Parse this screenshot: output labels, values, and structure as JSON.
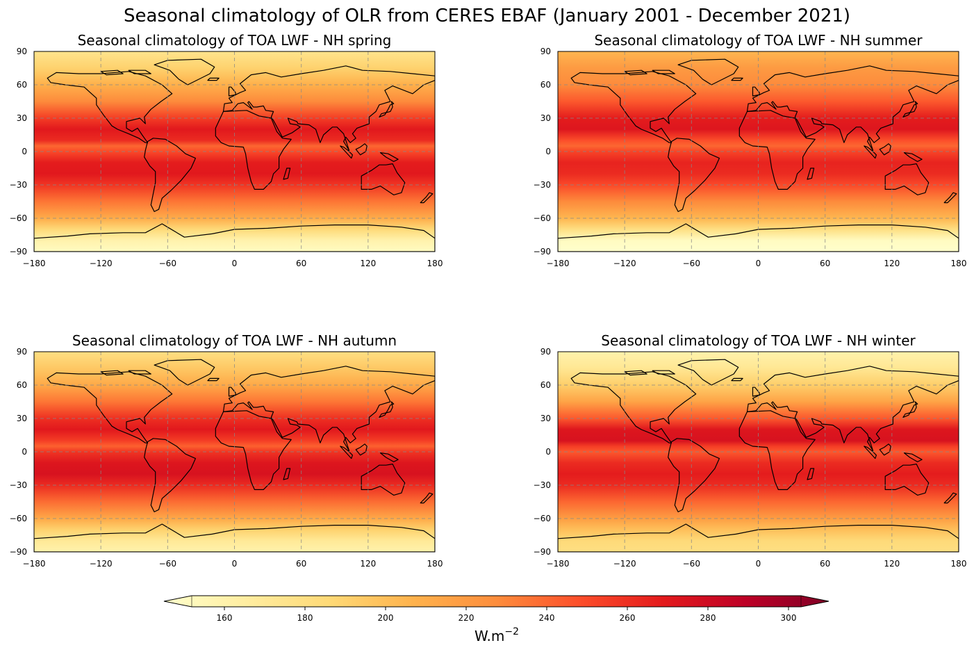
{
  "figure_title": "Seasonal climatology of OLR from CERES EBAF (January 2001 - December 2021)",
  "chart_data": [
    {
      "type": "heatmap",
      "title": "Seasonal climatology of TOA LWF - NH spring",
      "x_ticks": [
        "−180",
        "−120",
        "−60",
        "0",
        "60",
        "120",
        "180"
      ],
      "y_ticks": [
        "90",
        "60",
        "30",
        "0",
        "−30",
        "−60",
        "−90"
      ],
      "xlim": [
        -180,
        180
      ],
      "ylim": [
        -90,
        90
      ],
      "zonal_profile": [
        {
          "lat": 90,
          "value": 175
        },
        {
          "lat": 75,
          "value": 190
        },
        {
          "lat": 60,
          "value": 208
        },
        {
          "lat": 45,
          "value": 228
        },
        {
          "lat": 30,
          "value": 255
        },
        {
          "lat": 20,
          "value": 270
        },
        {
          "lat": 10,
          "value": 262
        },
        {
          "lat": 5,
          "value": 240
        },
        {
          "lat": 0,
          "value": 250
        },
        {
          "lat": -10,
          "value": 268
        },
        {
          "lat": -20,
          "value": 270
        },
        {
          "lat": -30,
          "value": 258
        },
        {
          "lat": -45,
          "value": 235
        },
        {
          "lat": -60,
          "value": 210
        },
        {
          "lat": -70,
          "value": 185
        },
        {
          "lat": -80,
          "value": 160
        },
        {
          "lat": -90,
          "value": 150
        }
      ]
    },
    {
      "type": "heatmap",
      "title": "Seasonal climatology of TOA LWF - NH summer",
      "x_ticks": [
        "−180",
        "−120",
        "−60",
        "0",
        "60",
        "120",
        "180"
      ],
      "y_ticks": [
        "90",
        "60",
        "30",
        "0",
        "−30",
        "−60",
        "−90"
      ],
      "xlim": [
        -180,
        180
      ],
      "ylim": [
        -90,
        90
      ],
      "zonal_profile": [
        {
          "lat": 90,
          "value": 205
        },
        {
          "lat": 75,
          "value": 220
        },
        {
          "lat": 60,
          "value": 228
        },
        {
          "lat": 45,
          "value": 245
        },
        {
          "lat": 30,
          "value": 268
        },
        {
          "lat": 20,
          "value": 272
        },
        {
          "lat": 10,
          "value": 248
        },
        {
          "lat": 5,
          "value": 240
        },
        {
          "lat": 0,
          "value": 252
        },
        {
          "lat": -10,
          "value": 265
        },
        {
          "lat": -20,
          "value": 262
        },
        {
          "lat": -30,
          "value": 250
        },
        {
          "lat": -45,
          "value": 228
        },
        {
          "lat": -60,
          "value": 205
        },
        {
          "lat": -70,
          "value": 180
        },
        {
          "lat": -80,
          "value": 150
        },
        {
          "lat": -90,
          "value": 140
        }
      ]
    },
    {
      "type": "heatmap",
      "title": "Seasonal climatology of TOA LWF - NH autumn",
      "x_ticks": [
        "−180",
        "−120",
        "−60",
        "0",
        "60",
        "120",
        "180"
      ],
      "y_ticks": [
        "90",
        "60",
        "30",
        "0",
        "−30",
        "−60",
        "−90"
      ],
      "xlim": [
        -180,
        180
      ],
      "ylim": [
        -90,
        90
      ],
      "zonal_profile": [
        {
          "lat": 90,
          "value": 180
        },
        {
          "lat": 75,
          "value": 195
        },
        {
          "lat": 60,
          "value": 212
        },
        {
          "lat": 45,
          "value": 235
        },
        {
          "lat": 30,
          "value": 260
        },
        {
          "lat": 20,
          "value": 270
        },
        {
          "lat": 10,
          "value": 255
        },
        {
          "lat": 5,
          "value": 242
        },
        {
          "lat": 0,
          "value": 258
        },
        {
          "lat": -10,
          "value": 272
        },
        {
          "lat": -20,
          "value": 275
        },
        {
          "lat": -30,
          "value": 262
        },
        {
          "lat": -45,
          "value": 238
        },
        {
          "lat": -60,
          "value": 212
        },
        {
          "lat": -70,
          "value": 190
        },
        {
          "lat": -80,
          "value": 170
        },
        {
          "lat": -90,
          "value": 160
        }
      ]
    },
    {
      "type": "heatmap",
      "title": "Seasonal climatology of TOA LWF - NH winter",
      "x_ticks": [
        "−180",
        "−120",
        "−60",
        "0",
        "60",
        "120",
        "180"
      ],
      "y_ticks": [
        "90",
        "60",
        "30",
        "0",
        "−30",
        "−60",
        "−90"
      ],
      "xlim": [
        -180,
        180
      ],
      "ylim": [
        -90,
        90
      ],
      "zonal_profile": [
        {
          "lat": 90,
          "value": 160
        },
        {
          "lat": 75,
          "value": 172
        },
        {
          "lat": 60,
          "value": 192
        },
        {
          "lat": 45,
          "value": 215
        },
        {
          "lat": 30,
          "value": 245
        },
        {
          "lat": 20,
          "value": 272
        },
        {
          "lat": 10,
          "value": 275
        },
        {
          "lat": 5,
          "value": 255
        },
        {
          "lat": 0,
          "value": 245
        },
        {
          "lat": -10,
          "value": 262
        },
        {
          "lat": -20,
          "value": 268
        },
        {
          "lat": -30,
          "value": 262
        },
        {
          "lat": -45,
          "value": 240
        },
        {
          "lat": -60,
          "value": 218
        },
        {
          "lat": -70,
          "value": 200
        },
        {
          "lat": -80,
          "value": 185
        },
        {
          "lat": -90,
          "value": 180
        }
      ]
    }
  ],
  "colorbar": {
    "cmap": "YlOrRd",
    "vmin": 145,
    "vmax": 310,
    "ticks": [
      {
        "value": 160,
        "label": "160"
      },
      {
        "value": 180,
        "label": "180"
      },
      {
        "value": 200,
        "label": "200"
      },
      {
        "value": 220,
        "label": "220"
      },
      {
        "value": 240,
        "label": "240"
      },
      {
        "value": 260,
        "label": "260"
      },
      {
        "value": 280,
        "label": "280"
      },
      {
        "value": 300,
        "label": "300"
      }
    ],
    "label_base": "W.m",
    "label_exponent": "−2",
    "colors": [
      "#ffffcc",
      "#ffeda0",
      "#fed976",
      "#feb24c",
      "#fd8d3c",
      "#fc4e2a",
      "#e31a1c",
      "#bd0026",
      "#800026"
    ]
  }
}
